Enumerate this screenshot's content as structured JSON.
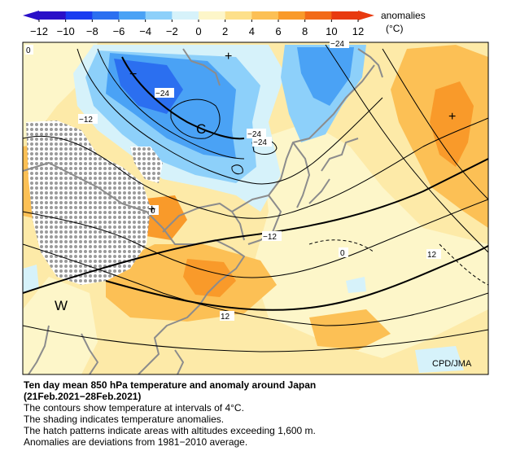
{
  "colorbar": {
    "ticks": [
      "−12",
      "−10",
      "−8",
      "−6",
      "−4",
      "−2",
      "0",
      "2",
      "4",
      "6",
      "8",
      "10",
      "12"
    ],
    "label_line1": "anomalies",
    "label_line2": "(°C)",
    "colors": [
      "#2a10c8",
      "#1a3cf0",
      "#2b6ff0",
      "#4aa2f5",
      "#8dd0fa",
      "#d6f2fa",
      "#fdf6c9",
      "#fde08a",
      "#fcc055",
      "#f99a2a",
      "#f26a18",
      "#e83a10"
    ]
  },
  "map": {
    "contour_labels": [
      "0",
      "−12",
      "−24",
      "−24",
      "−24",
      "−24",
      "0",
      "−12",
      "0",
      "12",
      "12"
    ],
    "markers": {
      "cold_center": "C",
      "warm_center": "W",
      "plus1": "+",
      "plus2": "+",
      "plus3": "+",
      "minus1": "−"
    },
    "credit": "CPD/JMA"
  },
  "caption": {
    "title_line1": "Ten day mean 850 hPa temperature and anomaly around Japan",
    "title_line2": "(21Feb.2021−28Feb.2021)",
    "line1": "The contours show temperature at intervals of 4°C.",
    "line2": "The shading indicates temperature anomalies.",
    "line3": "The hatch patterns indicate areas with altitudes exceeding 1,600 m.",
    "line4": "Anomalies are deviations from 1981−2010 average."
  }
}
